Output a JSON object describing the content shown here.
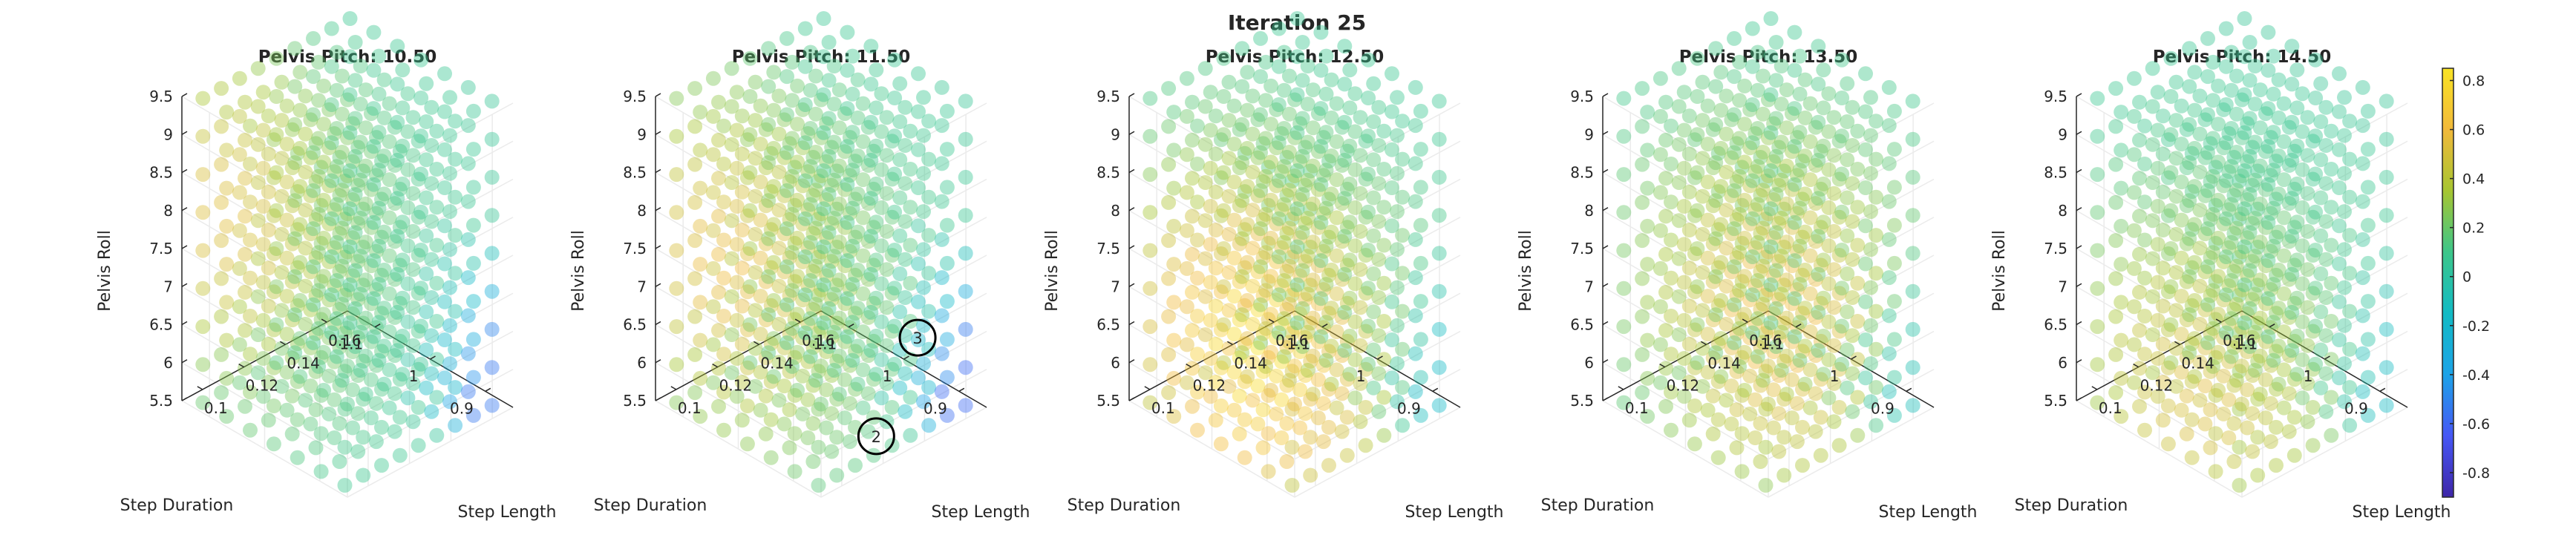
{
  "figure": {
    "title": "Iteration 25"
  },
  "chart_data": {
    "type": "scatter",
    "subtype": "3d-scatter-grid",
    "title": "Iteration 25",
    "axes": {
      "x": {
        "label": "Step Length",
        "ticks": [
          "0.1",
          "0.12",
          "0.14",
          "0.16"
        ],
        "range": [
          0.09,
          0.17
        ]
      },
      "y": {
        "label": "Step Duration",
        "ticks": [
          "0.9",
          "1",
          "1.1"
        ],
        "range": [
          0.85,
          1.15
        ]
      },
      "z": {
        "label": "Pelvis Roll",
        "ticks": [
          "5.5",
          "6",
          "6.5",
          "7",
          "7.5",
          "8",
          "8.5",
          "9",
          "9.5"
        ],
        "range": [
          5.5,
          9.5
        ]
      }
    },
    "grid": true,
    "grid_points": {
      "nx": 9,
      "ny": 7,
      "nz": 9
    },
    "panels": [
      {
        "title": "Pelvis Pitch: 10.50",
        "pelvis_pitch": 10.5,
        "peak": {
          "x": 0.1,
          "y": 1.1,
          "z": 8.0
        },
        "peak_value": 0.55,
        "floor_value": -0.55,
        "annotations": []
      },
      {
        "title": "Pelvis Pitch: 11.50",
        "pelvis_pitch": 11.5,
        "peak": {
          "x": 0.1,
          "y": 1.05,
          "z": 7.5
        },
        "peak_value": 0.6,
        "floor_value": -0.6,
        "annotations": [
          {
            "label": "3",
            "x": 0.15,
            "y": 0.9,
            "z": 6.5
          },
          {
            "label": "2",
            "x": 0.13,
            "y": 0.9,
            "z": 5.5
          }
        ]
      },
      {
        "title": "Pelvis Pitch: 12.50",
        "pelvis_pitch": 12.5,
        "peak": {
          "x": 0.11,
          "y": 1.0,
          "z": 6.5
        },
        "peak_value": 0.85,
        "floor_value": -0.25,
        "annotations": []
      },
      {
        "title": "Pelvis Pitch: 13.50",
        "pelvis_pitch": 13.5,
        "peak": {
          "x": 0.12,
          "y": 0.95,
          "z": 7.0
        },
        "peak_value": 0.65,
        "floor_value": -0.2,
        "annotations": []
      },
      {
        "title": "Pelvis Pitch: 14.50",
        "pelvis_pitch": 14.5,
        "peak": {
          "x": 0.11,
          "y": 1.0,
          "z": 6.0
        },
        "peak_value": 0.55,
        "floor_value": -0.2,
        "annotations": []
      }
    ],
    "colorbar": {
      "ticks": [
        "0.8",
        "0.6",
        "0.4",
        "0.2",
        "0",
        "-0.2",
        "-0.4",
        "-0.6",
        "-0.8"
      ],
      "range": [
        -0.9,
        0.85
      ],
      "colormap": [
        "#3e26a8",
        "#4657f5",
        "#1ca3e8",
        "#12bbc4",
        "#3cc68a",
        "#a6c531",
        "#f1b93a",
        "#f9e324"
      ]
    }
  }
}
